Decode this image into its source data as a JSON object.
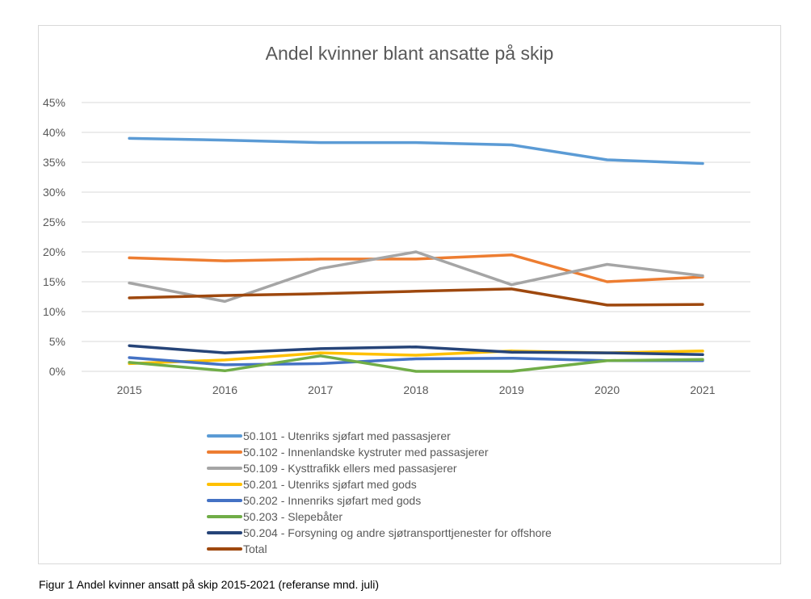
{
  "chart_data": {
    "type": "line",
    "title": "Andel kvinner blant ansatte på skip",
    "xlabel": "",
    "ylabel": "",
    "ylim": [
      0,
      45
    ],
    "yticks": [
      "0%",
      "5%",
      "10%",
      "15%",
      "20%",
      "25%",
      "30%",
      "35%",
      "40%",
      "45%"
    ],
    "ytick_values": [
      0,
      5,
      10,
      15,
      20,
      25,
      30,
      35,
      40,
      45
    ],
    "categories": [
      "2015",
      "2016",
      "2017",
      "2018",
      "2019",
      "2020",
      "2021"
    ],
    "grid": true,
    "legend_position": "bottom",
    "series": [
      {
        "name": "50.101 - Utenriks sjøfart med passasjerer",
        "color": "#5b9bd5",
        "values": [
          39.0,
          38.7,
          38.3,
          38.3,
          37.9,
          35.4,
          34.8
        ]
      },
      {
        "name": "50.102 - Innenlandske kystruter med passasjerer",
        "color": "#ed7d31",
        "values": [
          19.0,
          18.5,
          18.8,
          18.8,
          19.5,
          15.0,
          15.8
        ]
      },
      {
        "name": "50.109 - Kysttrafikk ellers med passasjerer",
        "color": "#a5a5a5",
        "values": [
          14.8,
          11.7,
          17.2,
          20.0,
          14.5,
          17.9,
          16.0
        ]
      },
      {
        "name": "50.201 - Utenriks sjøfart med gods",
        "color": "#ffc000",
        "values": [
          1.3,
          1.9,
          3.1,
          2.7,
          3.4,
          3.1,
          3.4
        ]
      },
      {
        "name": "50.202 - Innenriks sjøfart med gods",
        "color": "#4472c4",
        "values": [
          2.3,
          1.1,
          1.3,
          2.1,
          2.2,
          1.8,
          1.8
        ]
      },
      {
        "name": "50.203 - Slepebåter",
        "color": "#70ad47",
        "values": [
          1.5,
          0.1,
          2.6,
          0.0,
          0.0,
          1.8,
          2.0
        ]
      },
      {
        "name": "50.204 - Forsyning og andre sjøtransporttjenester for offshore",
        "color": "#264478",
        "values": [
          4.3,
          3.1,
          3.8,
          4.1,
          3.2,
          3.1,
          2.8
        ]
      },
      {
        "name": "Total",
        "color": "#9e480e",
        "values": [
          12.3,
          12.7,
          13.0,
          13.4,
          13.8,
          11.1,
          11.2
        ]
      }
    ]
  },
  "caption": "Figur 1 Andel kvinner ansatt på skip 2015-2021 (referanse mnd. juli)"
}
